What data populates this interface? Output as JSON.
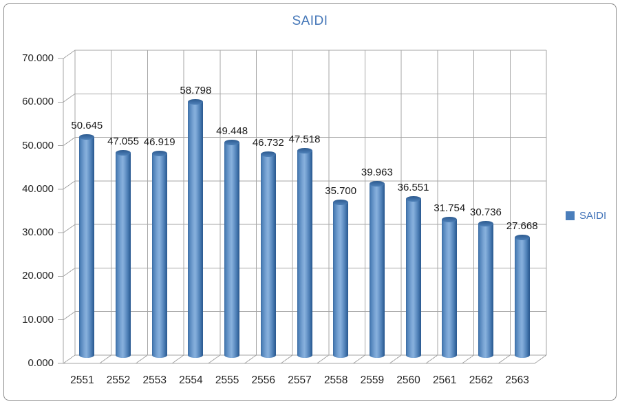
{
  "chart_data": {
    "type": "bar",
    "style": "3d-cylinder-column",
    "title": "SAIDI",
    "categories": [
      "2551",
      "2552",
      "2553",
      "2554",
      "2555",
      "2556",
      "2557",
      "2558",
      "2559",
      "2560",
      "2561",
      "2562",
      "2563"
    ],
    "series": [
      {
        "name": "SAIDI",
        "values": [
          50.645,
          47.055,
          46.919,
          58.798,
          49.448,
          46.732,
          47.518,
          35.7,
          39.963,
          36.551,
          31.754,
          30.736,
          27.668
        ]
      }
    ],
    "value_labels": [
      "50.645",
      "47.055",
      "46.919",
      "58.798",
      "49.448",
      "46.732",
      "47.518",
      "35.700",
      "39.963",
      "36.551",
      "31.754",
      "30.736",
      "27.668"
    ],
    "xlabel": "",
    "ylabel": "",
    "ylim": [
      0,
      70
    ],
    "ytick_step": 10,
    "ytick_labels": [
      "0.000",
      "10.000",
      "20.000",
      "30.000",
      "40.000",
      "50.000",
      "60.000",
      "70.000"
    ],
    "grid": true,
    "legend": {
      "label": "SAIDI",
      "position": "right"
    },
    "colors": {
      "title": "#4577b8",
      "legend_text": "#4173b8",
      "legend_swatch": "#4a7ebb",
      "bar_mid": "#7aa5d5",
      "bar_edge": "#2f5f96",
      "grid": "#a6a6a6",
      "axis_text": "#262626",
      "label_text": "#1a1a1a"
    }
  }
}
